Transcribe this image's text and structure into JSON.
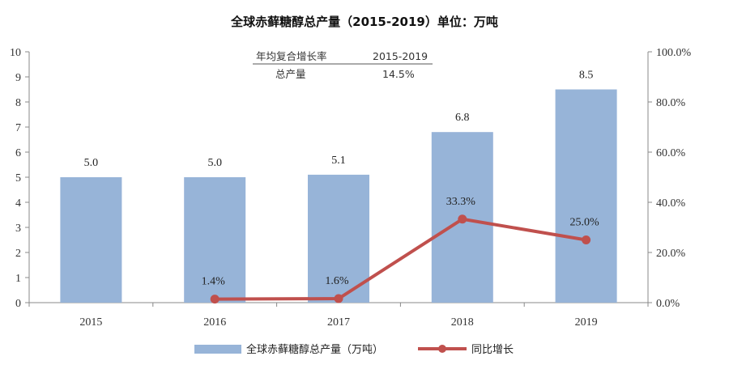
{
  "chart_data": {
    "type": "bar",
    "title": "全球赤藓糖醇总产量（2015-2019）单位：万吨",
    "categories": [
      "2015",
      "2016",
      "2017",
      "2018",
      "2019"
    ],
    "series": [
      {
        "name": "全球赤藓糖醇总产量（万吨）",
        "type": "bar",
        "axis": "left",
        "color": "#97b4d8",
        "values": [
          5.0,
          5.0,
          5.1,
          6.8,
          8.5
        ],
        "labels": [
          "5.0",
          "5.0",
          "5.1",
          "6.8",
          "8.5"
        ]
      },
      {
        "name": "同比增长",
        "type": "line",
        "axis": "right",
        "color": "#c0504d",
        "values": [
          null,
          1.4,
          1.6,
          33.3,
          25.0
        ],
        "labels": [
          "",
          "1.4%",
          "1.6%",
          "33.3%",
          "25.0%"
        ]
      }
    ],
    "y_left": {
      "ylim": [
        0,
        10
      ],
      "ticks": [
        "0",
        "1",
        "2",
        "3",
        "4",
        "5",
        "6",
        "7",
        "8",
        "9",
        "10"
      ]
    },
    "y_right": {
      "ylim": [
        0,
        100
      ],
      "ticks": [
        "0.0%",
        "20.0%",
        "40.0%",
        "60.0%",
        "80.0%",
        "100.0%"
      ]
    },
    "grid": false,
    "legend": "bottom",
    "annotation": {
      "header": [
        "年均复合增长率",
        "2015-2019"
      ],
      "row": [
        "总产量",
        "14.5%"
      ]
    }
  }
}
